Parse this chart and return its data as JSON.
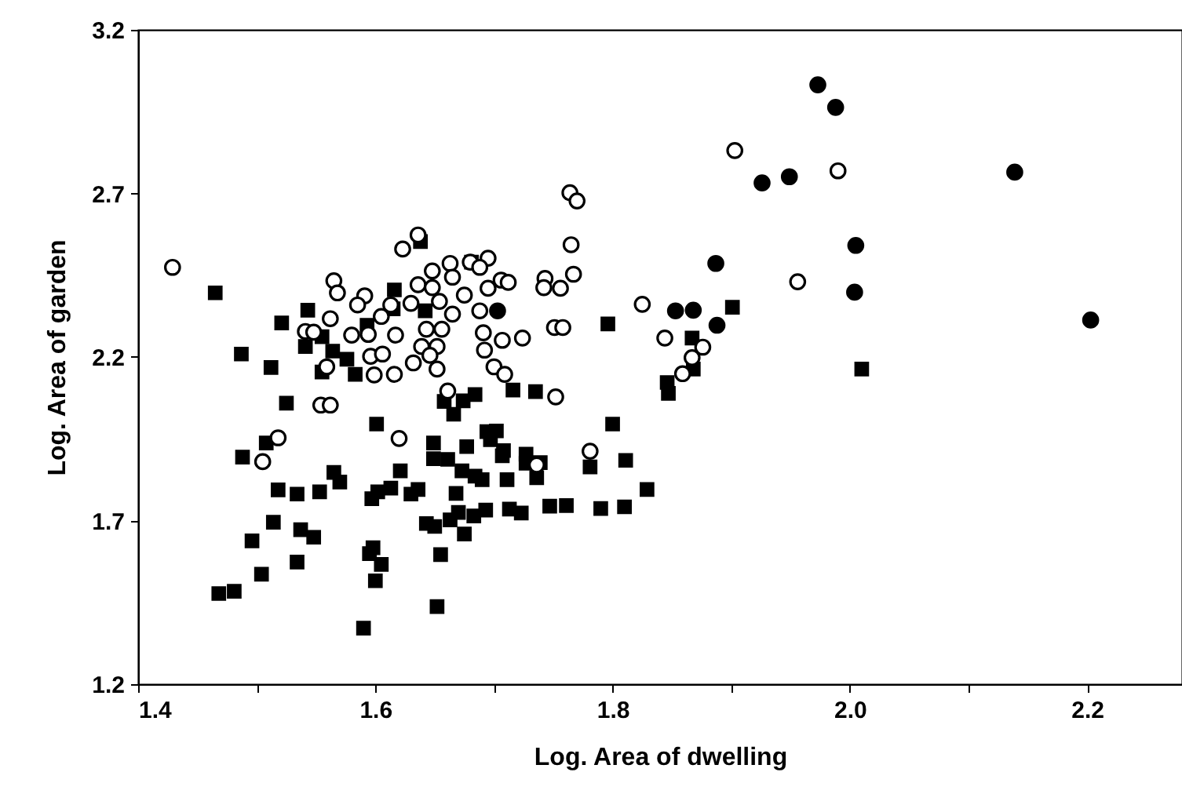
{
  "chart_data": {
    "type": "scatter",
    "xlabel": "Log. Area of dwelling",
    "ylabel": "Log. Area of garden",
    "xlim": [
      1.4,
      2.28
    ],
    "ylim": [
      1.2,
      3.2
    ],
    "xticks": [
      1.4,
      {
        "value": 1.5,
        "label": null
      },
      1.6,
      {
        "value": 1.7,
        "label": null
      },
      1.8,
      {
        "value": 1.9,
        "label": null
      },
      "2.0",
      {
        "value": 2.1,
        "label": null
      },
      2.2
    ],
    "yticks": [
      1.2,
      1.7,
      2.2,
      2.7,
      3.2
    ],
    "grid": false,
    "series": [
      {
        "marker": "square",
        "color": "#000000",
        "x": [
          1.465,
          1.487,
          1.512,
          1.521,
          1.543,
          1.541,
          1.555,
          1.564,
          1.555,
          1.583,
          1.576,
          1.593,
          1.616,
          1.615,
          1.642,
          1.638,
          1.681,
          1.525,
          1.508,
          1.488,
          1.518,
          1.534,
          1.553,
          1.565,
          1.57,
          1.514,
          1.537,
          1.548,
          1.496,
          1.534,
          1.504,
          1.468,
          1.481,
          1.601,
          1.597,
          1.602,
          1.613,
          1.621,
          1.63,
          1.636,
          1.598,
          1.595,
          1.605,
          1.6,
          1.59,
          1.652,
          1.655,
          1.643,
          1.65,
          1.649,
          1.649,
          1.661,
          1.658,
          1.666,
          1.674,
          1.684,
          1.716,
          1.735,
          1.668,
          1.673,
          1.677,
          1.684,
          1.69,
          1.694,
          1.702,
          1.697,
          1.708,
          1.707,
          1.711,
          1.663,
          1.67,
          1.675,
          1.683,
          1.693,
          1.713,
          1.723,
          1.727,
          1.727,
          1.736,
          1.739,
          1.747,
          1.761,
          1.781,
          1.79,
          1.8,
          1.811,
          1.81,
          1.829,
          1.796,
          1.867,
          1.868,
          1.846,
          1.847,
          1.901,
          2.01
        ],
        "values": [
          2.396,
          2.209,
          2.168,
          2.304,
          2.343,
          2.232,
          2.262,
          2.218,
          2.154,
          2.147,
          2.193,
          2.297,
          2.405,
          2.347,
          2.341,
          2.553,
          2.49,
          2.059,
          1.937,
          1.894,
          1.794,
          1.781,
          1.788,
          1.847,
          1.818,
          1.695,
          1.672,
          1.649,
          1.638,
          1.573,
          1.536,
          1.477,
          1.484,
          1.995,
          1.767,
          1.788,
          1.799,
          1.852,
          1.781,
          1.795,
          1.617,
          1.599,
          1.566,
          1.516,
          1.371,
          1.437,
          1.596,
          1.691,
          1.682,
          1.937,
          1.889,
          1.887,
          2.064,
          2.025,
          2.066,
          2.085,
          2.099,
          2.094,
          1.783,
          1.852,
          1.926,
          1.836,
          1.825,
          1.972,
          1.974,
          1.947,
          1.914,
          1.898,
          1.825,
          1.702,
          1.725,
          1.659,
          1.714,
          1.732,
          1.735,
          1.723,
          1.903,
          1.875,
          1.831,
          1.877,
          1.744,
          1.746,
          1.864,
          1.737,
          1.995,
          1.884,
          1.742,
          1.795,
          2.301,
          2.258,
          2.163,
          2.122,
          2.089,
          2.352,
          2.163
        ]
      },
      {
        "marker": "circle",
        "color": "#ffffff",
        "x": [
          1.429,
          1.903,
          1.99,
          1.956,
          1.764,
          1.77,
          1.765,
          1.767,
          1.743,
          1.742,
          1.756,
          1.751,
          1.758,
          1.752,
          1.724,
          1.825,
          1.844,
          1.876,
          1.867,
          1.859,
          1.781,
          1.736,
          1.636,
          1.623,
          1.695,
          1.68,
          1.663,
          1.648,
          1.665,
          1.636,
          1.688,
          1.706,
          1.712,
          1.695,
          1.648,
          1.675,
          1.654,
          1.63,
          1.613,
          1.688,
          1.665,
          1.605,
          1.591,
          1.585,
          1.565,
          1.568,
          1.562,
          1.541,
          1.548,
          1.58,
          1.594,
          1.617,
          1.643,
          1.656,
          1.691,
          1.707,
          1.692,
          1.639,
          1.652,
          1.596,
          1.606,
          1.646,
          1.559,
          1.599,
          1.616,
          1.632,
          1.652,
          1.7,
          1.709,
          1.661,
          1.554,
          1.562,
          1.518,
          1.505,
          1.62
        ],
        "values": [
          2.474,
          2.831,
          2.769,
          2.43,
          2.702,
          2.677,
          2.543,
          2.453,
          2.44,
          2.412,
          2.41,
          2.29,
          2.29,
          2.078,
          2.258,
          2.361,
          2.258,
          2.23,
          2.198,
          2.149,
          1.912,
          1.87,
          2.573,
          2.53,
          2.502,
          2.49,
          2.486,
          2.463,
          2.444,
          2.421,
          2.474,
          2.435,
          2.428,
          2.41,
          2.412,
          2.389,
          2.37,
          2.364,
          2.359,
          2.341,
          2.331,
          2.324,
          2.387,
          2.359,
          2.433,
          2.396,
          2.317,
          2.278,
          2.276,
          2.267,
          2.269,
          2.267,
          2.285,
          2.285,
          2.274,
          2.251,
          2.221,
          2.232,
          2.232,
          2.202,
          2.209,
          2.205,
          2.17,
          2.145,
          2.147,
          2.182,
          2.163,
          2.17,
          2.147,
          2.096,
          2.053,
          2.053,
          1.953,
          1.88,
          1.951
        ]
      },
      {
        "marker": "circle",
        "color": "#000000",
        "x": [
          1.973,
          1.988,
          1.926,
          1.949,
          2.139,
          2.005,
          2.004,
          2.203,
          1.887,
          1.888,
          1.853,
          1.868,
          1.703
        ],
        "values": [
          3.032,
          2.963,
          2.732,
          2.751,
          2.765,
          2.541,
          2.398,
          2.313,
          2.486,
          2.297,
          2.341,
          2.343,
          2.341
        ]
      }
    ]
  }
}
